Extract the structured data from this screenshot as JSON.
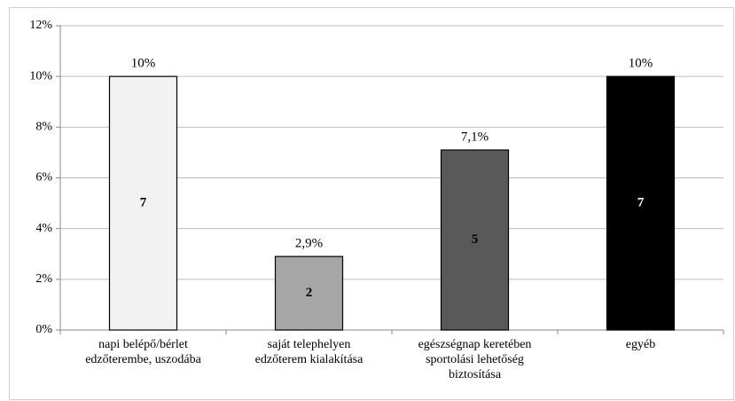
{
  "chart_data": {
    "type": "bar",
    "categories": [
      [
        "napi belépő/bérlet",
        "edzőterembe, uszodába"
      ],
      [
        "saját telephelyen",
        "edzőterem kialakítása"
      ],
      [
        "egészségnap keretében",
        "sportolási lehetőség",
        "biztosítása"
      ],
      [
        "egyéb"
      ]
    ],
    "values": [
      10,
      2.9,
      7.1,
      10
    ],
    "value_labels": [
      "10%",
      "2,9%",
      "7,1%",
      "10%"
    ],
    "counts": [
      7,
      2,
      5,
      7
    ],
    "colors": [
      "#f2f2f2",
      "#a6a6a6",
      "#595959",
      "#000000"
    ],
    "ylim": [
      0,
      12
    ],
    "yticks": [
      {
        "value": 0,
        "label": "0%"
      },
      {
        "value": 2,
        "label": "2%"
      },
      {
        "value": 4,
        "label": "4%"
      },
      {
        "value": 6,
        "label": "6%"
      },
      {
        "value": 8,
        "label": "8%"
      },
      {
        "value": 10,
        "label": "10%"
      },
      {
        "value": 12,
        "label": "12%"
      }
    ],
    "grid": true
  }
}
